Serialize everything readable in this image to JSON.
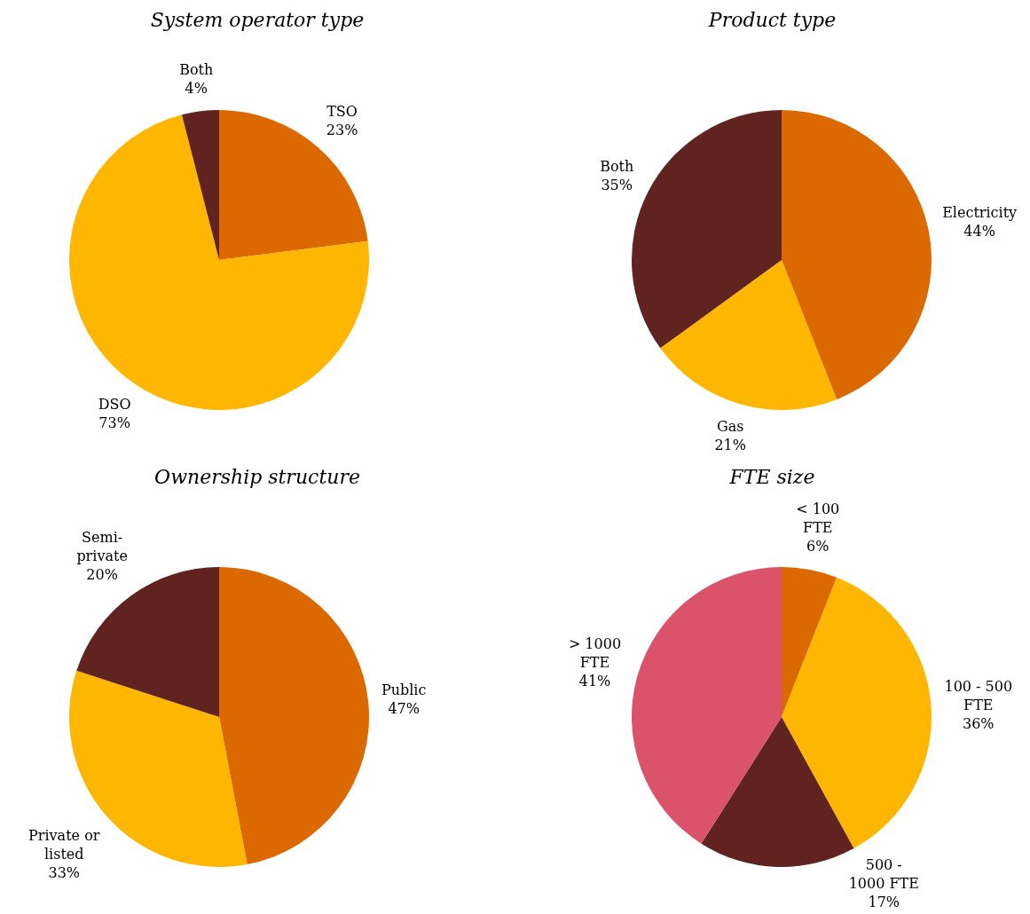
{
  "chart_data": [
    {
      "type": "pie",
      "title": "System operator type",
      "categories": [
        "TSO",
        "DSO",
        "Both"
      ],
      "values": [
        23,
        73,
        4
      ],
      "colors": [
        "#dc6900",
        "#ffb600",
        "#602320"
      ],
      "value_labels": [
        "23%",
        "73%",
        "4%"
      ]
    },
    {
      "type": "pie",
      "title": "Product type",
      "categories": [
        "Electricity",
        "Gas",
        "Both"
      ],
      "values": [
        44,
        21,
        35
      ],
      "colors": [
        "#dc6900",
        "#ffb600",
        "#602320"
      ],
      "value_labels": [
        "44%",
        "21%",
        "35%"
      ]
    },
    {
      "type": "pie",
      "title": "Ownership structure",
      "categories": [
        "Public",
        "Private or listed",
        "Semi-private"
      ],
      "values": [
        47,
        33,
        20
      ],
      "colors": [
        "#dc6900",
        "#ffb600",
        "#602320"
      ],
      "value_labels": [
        "47%",
        "33%",
        "20%"
      ]
    },
    {
      "type": "pie",
      "title": "FTE size",
      "categories": [
        "< 100 FTE",
        "100 - 500 FTE",
        "500 - 1000 FTE",
        "> 1000 FTE"
      ],
      "values": [
        6,
        36,
        17,
        41
      ],
      "colors": [
        "#dc6900",
        "#ffb600",
        "#602320",
        "#db536a"
      ],
      "value_labels": [
        "6%",
        "36%",
        "17%",
        "41%"
      ]
    }
  ]
}
